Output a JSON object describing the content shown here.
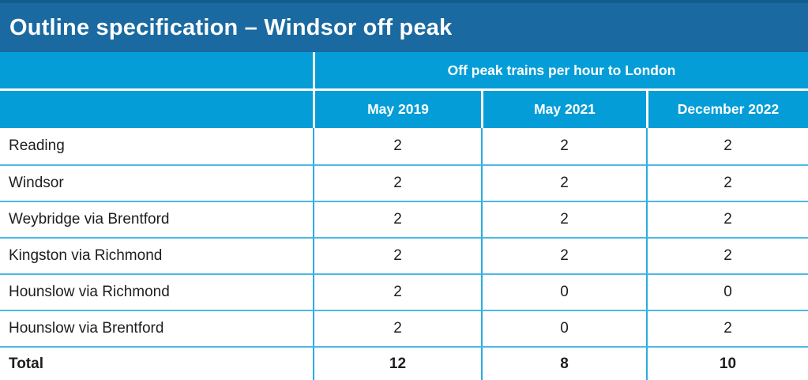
{
  "title": "Outline specification – Windsor off peak",
  "colors": {
    "title_bar": "#1a6aa1",
    "header_blue": "#049dd8",
    "grid_line_blue": "#2aabe2",
    "text": "#1d1d1b"
  },
  "table": {
    "group_header": "Off peak trains per hour to London",
    "columns": [
      "May 2019",
      "May 2021",
      "December 2022"
    ],
    "rows": [
      {
        "label": "Reading",
        "values": [
          "2",
          "2",
          "2"
        ]
      },
      {
        "label": "Windsor",
        "values": [
          "2",
          "2",
          "2"
        ]
      },
      {
        "label": "Weybridge via Brentford",
        "values": [
          "2",
          "2",
          "2"
        ]
      },
      {
        "label": "Kingston via Richmond",
        "values": [
          "2",
          "2",
          "2"
        ]
      },
      {
        "label": "Hounslow via Richmond",
        "values": [
          "2",
          "0",
          "0"
        ]
      },
      {
        "label": "Hounslow via Brentford",
        "values": [
          "2",
          "0",
          "2"
        ]
      }
    ],
    "total_row": {
      "label": "Total",
      "values": [
        "12",
        "8",
        "10"
      ]
    }
  }
}
